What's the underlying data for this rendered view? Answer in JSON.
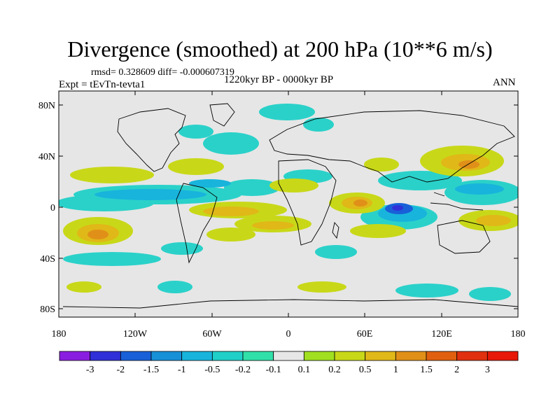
{
  "title": "Divergence (smoothed) at 200 hPa (10**6 m/s)",
  "stats": "rmsd= 0.328609 diff= -0.000607319",
  "experiment": "Expt = tEvTn-tevta1",
  "period": "1220kyr BP - 0000kyr BP",
  "season": "ANN",
  "y_ticks": [
    "80N",
    "40N",
    "0",
    "40S",
    "80S"
  ],
  "x_ticks": [
    "180",
    "120W",
    "60W",
    "0",
    "60E",
    "120E",
    "180"
  ],
  "colorbar": {
    "labels": [
      "-3",
      "-2",
      "-1.5",
      "-1",
      "-0.5",
      "-0.2",
      "-0.1",
      "0.1",
      "0.2",
      "0.5",
      "1",
      "1.5",
      "2",
      "3"
    ],
    "colors": [
      "#8a1ee0",
      "#3030d8",
      "#1860d8",
      "#1890d8",
      "#18b4dc",
      "#20d0c8",
      "#30e0a8",
      "#e6e6e6",
      "#a0e020",
      "#c8d818",
      "#e0b818",
      "#e09018",
      "#e06010",
      "#e03010",
      "#e81808"
    ]
  },
  "map": {
    "background": "#e6e6e6",
    "land_outline": "#000000"
  }
}
